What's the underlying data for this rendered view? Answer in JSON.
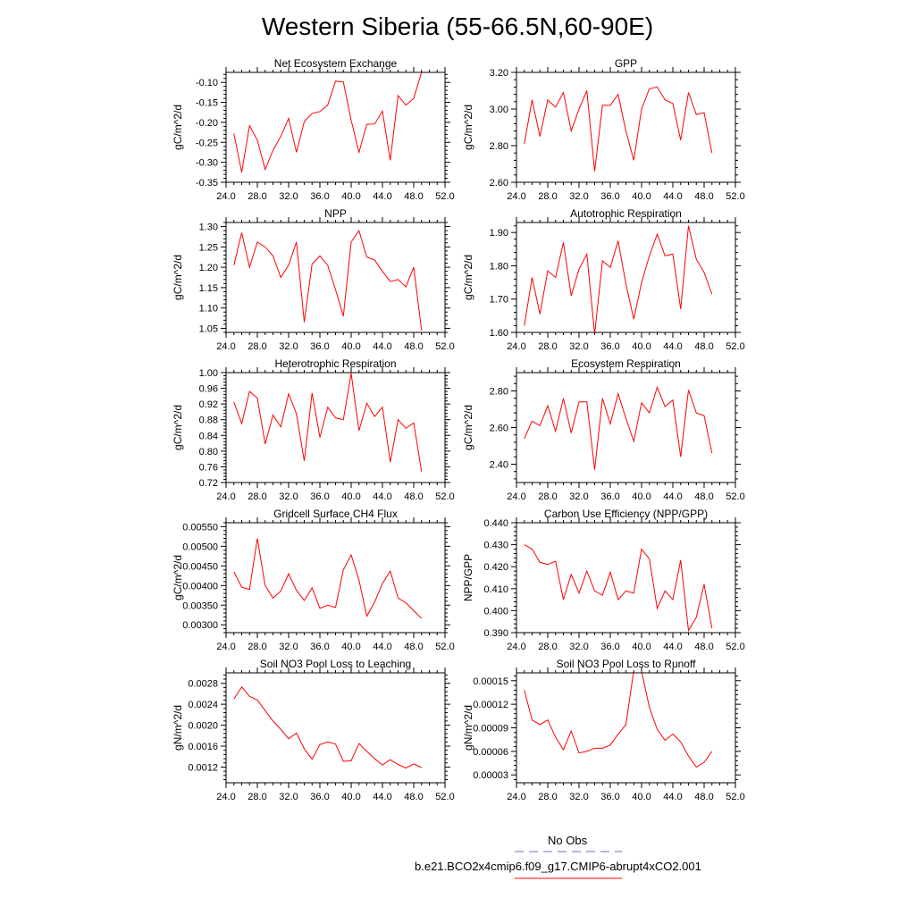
{
  "title": "Western Siberia (55-66.5N,60-90E)",
  "colors": {
    "model_line": "#ff0000",
    "obs_line": "#6b6bd6",
    "axis": "#000000"
  },
  "legend": {
    "obs_label": "No Obs",
    "model_label": "b.e21.BCO2x4cmip6.f09_g17.CMIP6-abrupt4xCO2.001"
  },
  "chart_data": [
    {
      "type": "line",
      "title": "Net Ecosystem Exchange",
      "ylabel": "gC/m^2/d",
      "xlim": [
        24,
        52
      ],
      "xticks": [
        24,
        28,
        32,
        36,
        40,
        44,
        48,
        52
      ],
      "xdec": 1,
      "ylim": [
        -0.35,
        -0.075
      ],
      "yticks": [
        -0.35,
        -0.3,
        -0.25,
        -0.2,
        -0.15,
        -0.1
      ],
      "ydec": 2,
      "x": [
        25,
        26,
        27,
        28,
        29,
        30,
        31,
        32,
        33,
        34,
        35,
        36,
        37,
        38,
        39,
        40,
        41,
        42,
        43,
        44,
        45,
        46,
        47,
        48,
        49
      ],
      "series": [
        {
          "values": [
            -0.228,
            -0.325,
            -0.208,
            -0.245,
            -0.318,
            -0.27,
            -0.235,
            -0.19,
            -0.275,
            -0.198,
            -0.178,
            -0.173,
            -0.157,
            -0.097,
            -0.099,
            -0.195,
            -0.275,
            -0.205,
            -0.204,
            -0.172,
            -0.295,
            -0.133,
            -0.157,
            -0.14,
            -0.075
          ]
        }
      ]
    },
    {
      "type": "line",
      "title": "GPP",
      "ylabel": "gC/m^2/d",
      "xlim": [
        24,
        52
      ],
      "xticks": [
        24,
        28,
        32,
        36,
        40,
        44,
        48,
        52
      ],
      "xdec": 1,
      "ylim": [
        2.6,
        3.2
      ],
      "yticks": [
        2.6,
        2.8,
        3.0,
        3.2
      ],
      "ydec": 2,
      "x": [
        25,
        26,
        27,
        28,
        29,
        30,
        31,
        32,
        33,
        34,
        35,
        36,
        37,
        38,
        39,
        40,
        41,
        42,
        43,
        44,
        45,
        46,
        47,
        48,
        49
      ],
      "series": [
        {
          "values": [
            2.81,
            3.05,
            2.85,
            3.05,
            3.01,
            3.09,
            2.88,
            3.0,
            3.1,
            2.66,
            3.02,
            3.02,
            3.08,
            2.88,
            2.72,
            3.0,
            3.11,
            3.12,
            3.05,
            3.03,
            2.83,
            3.09,
            2.97,
            2.98,
            2.76
          ]
        }
      ]
    },
    {
      "type": "line",
      "title": "NPP",
      "ylabel": "gC/m^2/d",
      "xlim": [
        24,
        52
      ],
      "xticks": [
        24,
        28,
        32,
        36,
        40,
        44,
        48,
        52
      ],
      "xdec": 1,
      "ylim": [
        1.04,
        1.31
      ],
      "yticks": [
        1.05,
        1.1,
        1.15,
        1.2,
        1.25,
        1.3
      ],
      "ydec": 2,
      "x": [
        25,
        26,
        27,
        28,
        29,
        30,
        31,
        32,
        33,
        34,
        35,
        36,
        37,
        38,
        39,
        40,
        41,
        42,
        43,
        44,
        45,
        46,
        47,
        48,
        49
      ],
      "series": [
        {
          "values": [
            1.205,
            1.285,
            1.2,
            1.262,
            1.25,
            1.228,
            1.175,
            1.205,
            1.262,
            1.065,
            1.208,
            1.228,
            1.205,
            1.145,
            1.08,
            1.262,
            1.29,
            1.225,
            1.218,
            1.19,
            1.165,
            1.17,
            1.152,
            1.2,
            1.045
          ]
        }
      ]
    },
    {
      "type": "line",
      "title": "Autotrophic Respiration",
      "ylabel": "gC/m^2/d",
      "xlim": [
        24,
        52
      ],
      "xticks": [
        24,
        28,
        32,
        36,
        40,
        44,
        48,
        52
      ],
      "xdec": 1,
      "ylim": [
        1.6,
        1.93
      ],
      "yticks": [
        1.6,
        1.7,
        1.8,
        1.9
      ],
      "ydec": 2,
      "x": [
        25,
        26,
        27,
        28,
        29,
        30,
        31,
        32,
        33,
        34,
        35,
        36,
        37,
        38,
        39,
        40,
        41,
        42,
        43,
        44,
        45,
        46,
        47,
        48,
        49
      ],
      "series": [
        {
          "values": [
            1.62,
            1.765,
            1.655,
            1.785,
            1.765,
            1.87,
            1.71,
            1.79,
            1.835,
            1.595,
            1.815,
            1.795,
            1.875,
            1.745,
            1.64,
            1.75,
            1.83,
            1.895,
            1.83,
            1.835,
            1.67,
            1.92,
            1.82,
            1.78,
            1.715
          ]
        }
      ]
    },
    {
      "type": "line",
      "title": "Heterotrophic Respiration",
      "ylabel": "gC/m^2/d",
      "xlim": [
        24,
        52
      ],
      "xticks": [
        24,
        28,
        32,
        36,
        40,
        44,
        48,
        52
      ],
      "xdec": 1,
      "ylim": [
        0.72,
        1.0
      ],
      "yticks": [
        0.72,
        0.76,
        0.8,
        0.84,
        0.88,
        0.92,
        0.96,
        1.0
      ],
      "ydec": 2,
      "x": [
        25,
        26,
        27,
        28,
        29,
        30,
        31,
        32,
        33,
        34,
        35,
        36,
        37,
        38,
        39,
        40,
        41,
        42,
        43,
        44,
        45,
        46,
        47,
        48,
        49
      ],
      "series": [
        {
          "values": [
            0.925,
            0.87,
            0.952,
            0.935,
            0.818,
            0.892,
            0.862,
            0.946,
            0.895,
            0.775,
            0.948,
            0.835,
            0.912,
            0.885,
            0.88,
            0.998,
            0.852,
            0.922,
            0.888,
            0.912,
            0.772,
            0.88,
            0.858,
            0.872,
            0.748
          ]
        }
      ]
    },
    {
      "type": "line",
      "title": "Ecosystem Respiration",
      "ylabel": "gC/m^2/d",
      "xlim": [
        24,
        52
      ],
      "xticks": [
        24,
        28,
        32,
        36,
        40,
        44,
        48,
        52
      ],
      "xdec": 1,
      "ylim": [
        2.3,
        2.9
      ],
      "yticks": [
        2.4,
        2.6,
        2.8
      ],
      "ydec": 2,
      "x": [
        25,
        26,
        27,
        28,
        29,
        30,
        31,
        32,
        33,
        34,
        35,
        36,
        37,
        38,
        39,
        40,
        41,
        42,
        43,
        44,
        45,
        46,
        47,
        48,
        49
      ],
      "series": [
        {
          "values": [
            2.54,
            2.635,
            2.61,
            2.72,
            2.58,
            2.76,
            2.57,
            2.74,
            2.74,
            2.37,
            2.76,
            2.62,
            2.785,
            2.65,
            2.525,
            2.735,
            2.68,
            2.82,
            2.715,
            2.75,
            2.44,
            2.805,
            2.68,
            2.665,
            2.46
          ]
        }
      ]
    },
    {
      "type": "line",
      "title": "Gridcell Surface CH4 Flux",
      "ylabel": "gC/m^2/d",
      "xlim": [
        24,
        52
      ],
      "xticks": [
        24,
        28,
        32,
        36,
        40,
        44,
        48,
        52
      ],
      "xdec": 1,
      "ylim": [
        0.0028,
        0.0056
      ],
      "yticks": [
        0.003,
        0.0035,
        0.004,
        0.0045,
        0.005,
        0.0055
      ],
      "ydec": 5,
      "x": [
        25,
        26,
        27,
        28,
        29,
        30,
        31,
        32,
        33,
        34,
        35,
        36,
        37,
        38,
        39,
        40,
        41,
        42,
        43,
        44,
        45,
        46,
        47,
        48,
        49
      ],
      "series": [
        {
          "values": [
            0.00435,
            0.00396,
            0.0039,
            0.0052,
            0.004,
            0.00368,
            0.00386,
            0.0043,
            0.00388,
            0.00362,
            0.00394,
            0.00342,
            0.0035,
            0.00344,
            0.0044,
            0.00478,
            0.00414,
            0.00322,
            0.00358,
            0.00405,
            0.00437,
            0.00368,
            0.00356,
            0.00336,
            0.00316
          ]
        }
      ]
    },
    {
      "type": "line",
      "title": "Carbon Use Efficiency (NPP/GPP)",
      "ylabel": "NPP/GPP",
      "xlim": [
        24,
        52
      ],
      "xticks": [
        24,
        28,
        32,
        36,
        40,
        44,
        48,
        52
      ],
      "xdec": 1,
      "ylim": [
        0.39,
        0.44
      ],
      "yticks": [
        0.39,
        0.4,
        0.41,
        0.42,
        0.43,
        0.44
      ],
      "ydec": 3,
      "x": [
        25,
        26,
        27,
        28,
        29,
        30,
        31,
        32,
        33,
        34,
        35,
        36,
        37,
        38,
        39,
        40,
        41,
        42,
        43,
        44,
        45,
        46,
        47,
        48,
        49
      ],
      "series": [
        {
          "values": [
            0.43,
            0.428,
            0.422,
            0.421,
            0.4225,
            0.405,
            0.4165,
            0.408,
            0.418,
            0.409,
            0.407,
            0.4175,
            0.405,
            0.409,
            0.408,
            0.428,
            0.4235,
            0.401,
            0.409,
            0.405,
            0.423,
            0.391,
            0.397,
            0.412,
            0.392
          ]
        }
      ]
    },
    {
      "type": "line",
      "title": "Soil NO3 Pool Loss to Leaching",
      "ylabel": "gN/m^2/d",
      "xlim": [
        24,
        52
      ],
      "xticks": [
        24,
        28,
        32,
        36,
        40,
        44,
        48,
        52
      ],
      "xdec": 1,
      "ylim": [
        0.0009,
        0.003
      ],
      "yticks": [
        0.0012,
        0.0016,
        0.002,
        0.0024,
        0.0028
      ],
      "ydec": 4,
      "x": [
        25,
        26,
        27,
        28,
        29,
        30,
        31,
        32,
        33,
        34,
        35,
        36,
        37,
        38,
        39,
        40,
        41,
        42,
        43,
        44,
        45,
        46,
        47,
        48,
        49
      ],
      "series": [
        {
          "values": [
            0.0025,
            0.00273,
            0.00255,
            0.00248,
            0.00228,
            0.00208,
            0.00192,
            0.00174,
            0.00185,
            0.00155,
            0.00135,
            0.00163,
            0.00168,
            0.00164,
            0.00131,
            0.00132,
            0.00165,
            0.0015,
            0.00136,
            0.00124,
            0.00134,
            0.00125,
            0.00118,
            0.00126,
            0.00119
          ]
        }
      ]
    },
    {
      "type": "line",
      "title": "Soil NO3 Pool Loss to Runoff",
      "ylabel": "gN/m^2/d",
      "xlim": [
        24,
        52
      ],
      "xticks": [
        24,
        28,
        32,
        36,
        40,
        44,
        48,
        52
      ],
      "xdec": 1,
      "ylim": [
        2e-05,
        0.00016
      ],
      "yticks": [
        3e-05,
        6e-05,
        9e-05,
        0.00012,
        0.00015
      ],
      "ydec": 5,
      "x": [
        25,
        26,
        27,
        28,
        29,
        30,
        31,
        32,
        33,
        34,
        35,
        36,
        37,
        38,
        39,
        40,
        41,
        42,
        43,
        44,
        45,
        46,
        47,
        48,
        49
      ],
      "series": [
        {
          "values": [
            0.000138,
            0.0001,
            9.4e-05,
            0.0001,
            7.8e-05,
            6.2e-05,
            8.6e-05,
            5.8e-05,
            6e-05,
            6.4e-05,
            6.4e-05,
            6.8e-05,
            8.2e-05,
            9.4e-05,
            0.000163,
            0.000162,
            0.000116,
            8.8e-05,
            7.4e-05,
            8.2e-05,
            7.2e-05,
            5.4e-05,
            4e-05,
            4.6e-05,
            6e-05
          ]
        }
      ]
    }
  ]
}
